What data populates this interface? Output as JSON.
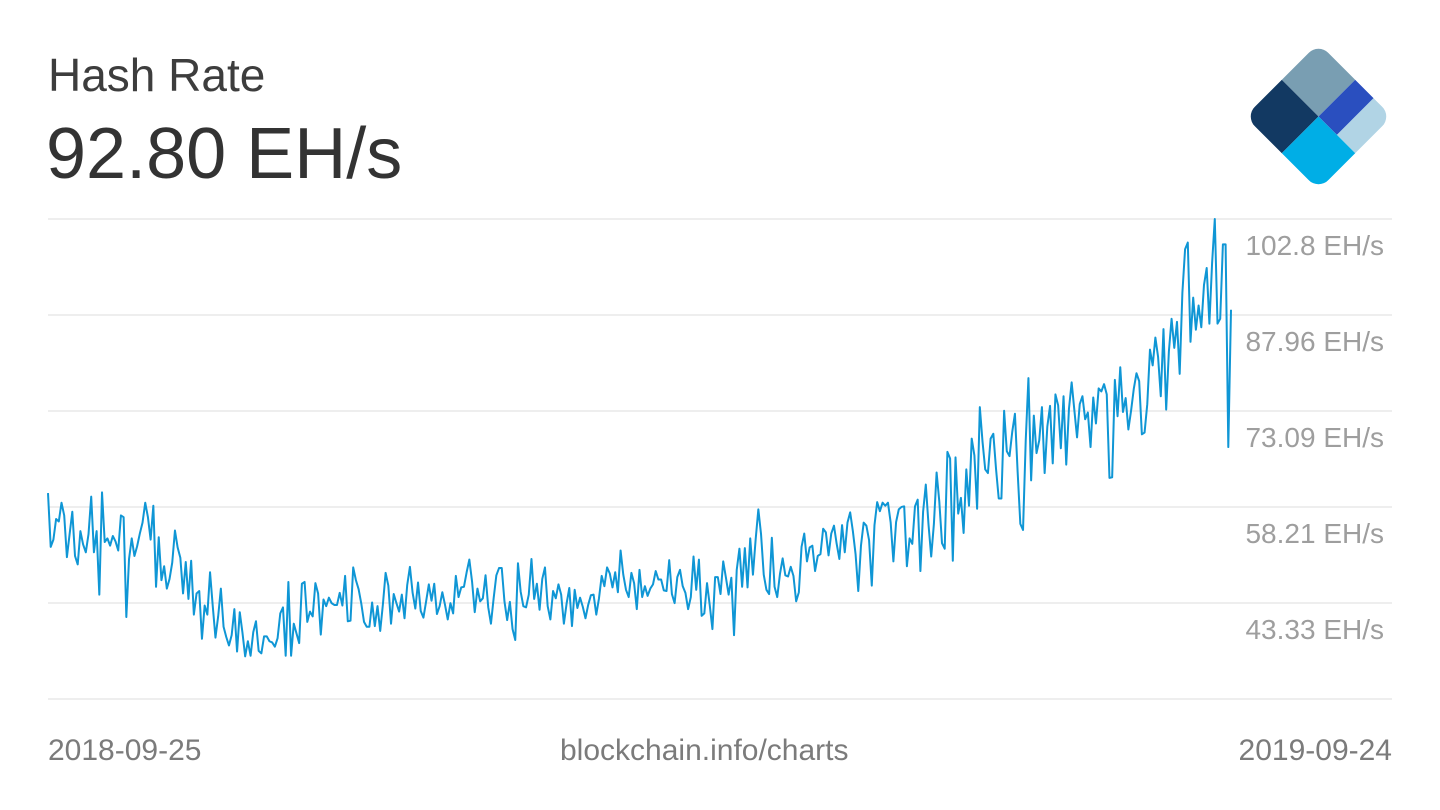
{
  "header": {
    "title": "Hash Rate",
    "current_value": "92.80 EH/s"
  },
  "footer": {
    "start_date": "2018-09-25",
    "source": "blockchain.info/charts",
    "end_date": "2019-09-24"
  },
  "logo": {
    "icon": "blockchain-logo-icon",
    "colors": [
      "#123962",
      "#799eb2",
      "#2a4fbf",
      "#00aee6",
      "#b1d4e5"
    ]
  },
  "colors": {
    "line": "#0f96d5",
    "grid": "#dcdcdc",
    "tick_text": "#9e9e9e"
  },
  "chart_data": {
    "type": "line",
    "title": "Hash Rate",
    "xlabel": "",
    "ylabel": "",
    "x_range": [
      "2018-09-25",
      "2019-09-24"
    ],
    "ylim": [
      28.45,
      107.8
    ],
    "yticks": [
      43.33,
      58.21,
      73.09,
      87.96,
      102.8
    ],
    "ytick_labels": [
      "43.33 EH/s",
      "58.21 EH/s",
      "73.09 EH/s",
      "87.96 EH/s",
      "102.8 EH/s"
    ],
    "grid": true,
    "series": [
      {
        "values": [
          62.5,
          53.6,
          54.8,
          58.2,
          57.8,
          60.9,
          58.8,
          51.9,
          55.7,
          59.4,
          52.1,
          50.7,
          56.2,
          54.0,
          52.7,
          55.7,
          61.9,
          52.7,
          56.2,
          45.7,
          62.6,
          54.4,
          55.0,
          53.8,
          55.4,
          54.5,
          53.0,
          58.8,
          58.5,
          42.0,
          51.6,
          55.0,
          52.1,
          53.7,
          55.8,
          57.6,
          60.9,
          58.5,
          54.8,
          60.4,
          47.0,
          55.2,
          48.1,
          50.4,
          46.7,
          48.3,
          51.0,
          56.3,
          53.5,
          51.8,
          45.9,
          51.1,
          45.0,
          51.3,
          42.4,
          45.9,
          46.3,
          38.4,
          43.9,
          42.4,
          49.4,
          43.8,
          38.6,
          42.1,
          46.7,
          40.4,
          38.7,
          37.3,
          39.0,
          43.3,
          36.3,
          42.8,
          39.4,
          35.5,
          38.0,
          35.6,
          39.5,
          41.3,
          36.4,
          36.0,
          38.8,
          38.8,
          38.0,
          37.8,
          37.1,
          38.5,
          42.6,
          43.6,
          35.6,
          47.8,
          35.6,
          40.9,
          39.3,
          37.7,
          47.5,
          47.8,
          41.2,
          42.9,
          42.1,
          47.6,
          45.9,
          39.1,
          44.9,
          43.8,
          45.2,
          44.3,
          44.0,
          44.0,
          46.0,
          43.9,
          48.8,
          41.3,
          41.4,
          50.2,
          48.1,
          46.6,
          44.2,
          41.2,
          40.4,
          40.4,
          44.4,
          40.5,
          43.8,
          39.7,
          44.1,
          49.3,
          47.2,
          40.9,
          45.8,
          44.3,
          42.9,
          45.7,
          41.8,
          47.3,
          50.3,
          46.0,
          43.4,
          47.7,
          43.0,
          41.9,
          44.6,
          47.4,
          44.7,
          47.5,
          42.5,
          43.8,
          46.1,
          44.0,
          41.6,
          44.3,
          42.6,
          48.8,
          45.3,
          46.9,
          47.0,
          49.4,
          51.5,
          47.9,
          42.8,
          46.7,
          44.6,
          45.1,
          48.9,
          43.6,
          40.9,
          45.1,
          48.9,
          50.1,
          50.1,
          44.6,
          41.5,
          44.5,
          40.0,
          38.2,
          50.9,
          46.2,
          43.8,
          43.6,
          45.7,
          51.6,
          45.0,
          47.5,
          43.2,
          48.3,
          50.2,
          43.8,
          41.6,
          46.3,
          45.1,
          47.4,
          45.7,
          40.9,
          44.2,
          46.8,
          40.5,
          46.5,
          43.5,
          45.2,
          43.7,
          41.8,
          44.0,
          45.6,
          45.7,
          42.4,
          45.1,
          48.8,
          47.1,
          50.2,
          49.2,
          46.9,
          49.4,
          46.1,
          53.0,
          49.0,
          46.5,
          45.3,
          49.3,
          47.6,
          43.3,
          49.8,
          45.3,
          47.1,
          45.5,
          46.7,
          47.4,
          49.6,
          48.2,
          48.2,
          46.4,
          46.3,
          51.4,
          45.8,
          44.3,
          48.6,
          49.8,
          47.1,
          46.0,
          43.3,
          45.3,
          52.0,
          46.5,
          51.5,
          42.2,
          42.6,
          47.6,
          44.0,
          40.0,
          48.6,
          48.6,
          45.8,
          51.2,
          48.5,
          45.7,
          48.5,
          39.0,
          49.8,
          53.3,
          47.0,
          53.4,
          46.9,
          55.0,
          49.0,
          54.8,
          59.8,
          55.7,
          49.0,
          46.5,
          45.8,
          55.1,
          47.0,
          45.3,
          49.1,
          51.7,
          48.9,
          48.7,
          50.3,
          48.8,
          44.6,
          46.1,
          53.6,
          55.8,
          51.2,
          53.5,
          53.8,
          49.6,
          52.1,
          52.4,
          56.6,
          56.0,
          52.2,
          55.8,
          57.1,
          54.1,
          51.6,
          57.2,
          52.7,
          57.6,
          59.3,
          56.2,
          52.4,
          46.3,
          53.8,
          57.6,
          57.1,
          54.7,
          47.2,
          57.2,
          61.0,
          59.5,
          60.9,
          60.4,
          60.9,
          57.6,
          51.2,
          57.7,
          59.8,
          60.2,
          60.3,
          50.4,
          55.0,
          54.1,
          60.3,
          61.4,
          49.6,
          59.4,
          63.9,
          57.3,
          52.0,
          57.4,
          65.9,
          61.1,
          54.2,
          53.3,
          69.3,
          68.2,
          51.3,
          68.4,
          59.1,
          61.7,
          55.9,
          66.4,
          60.4,
          71.5,
          68.7,
          59.9,
          76.7,
          71.0,
          66.4,
          65.8,
          71.5,
          72.3,
          66.5,
          61.6,
          61.6,
          76.1,
          69.4,
          68.6,
          72.6,
          75.6,
          66.0,
          57.4,
          56.4,
          71.2,
          81.5,
          64.6,
          75.3,
          69.1,
          71.2,
          76.7,
          65.8,
          73.5,
          76.9,
          67.4,
          78.8,
          77.0,
          69.9,
          78.5,
          67.2,
          76.4,
          80.8,
          76.2,
          71.7,
          77.2,
          78.5,
          74.7,
          75.8,
          70.1,
          78.3,
          74.0,
          79.8,
          79.3,
          80.5,
          78.8,
          65.0,
          65.1,
          81.2,
          75.2,
          83.3,
          75.9,
          78.2,
          73.0,
          76.1,
          79.7,
          82.3,
          81.0,
          72.2,
          72.5,
          77.2,
          86.2,
          83.6,
          88.2,
          85.0,
          78.5,
          89.6,
          76.3,
          85.9,
          91.3,
          86.5,
          90.8,
          82.2,
          95.6,
          102.8,
          103.9,
          87.5,
          94.8,
          89.5,
          93.5,
          89.9,
          96.9,
          99.7,
          90.5,
          100.5,
          107.8,
          90.5,
          91.3,
          103.6,
          103.6,
          70.1,
          92.8
        ]
      }
    ]
  }
}
